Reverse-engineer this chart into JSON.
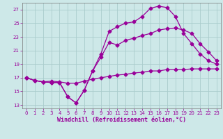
{
  "xlabel": "Windchill (Refroidissement éolien,°C)",
  "background_color": "#cde8e8",
  "grid_color": "#aacccc",
  "line_color": "#990099",
  "xlim": [
    -0.5,
    23.5
  ],
  "ylim": [
    12.5,
    28.0
  ],
  "xticks": [
    0,
    1,
    2,
    3,
    4,
    5,
    6,
    7,
    8,
    9,
    10,
    11,
    12,
    13,
    14,
    15,
    16,
    17,
    18,
    19,
    20,
    21,
    22,
    23
  ],
  "yticks": [
    13,
    15,
    17,
    19,
    21,
    23,
    25,
    27
  ],
  "line1_x": [
    0,
    1,
    2,
    3,
    4,
    5,
    6,
    7,
    8,
    9,
    10,
    11,
    12,
    13,
    14,
    15,
    16,
    17,
    18,
    19,
    20,
    21,
    22,
    23
  ],
  "line1_y": [
    17.0,
    16.6,
    16.4,
    16.3,
    16.3,
    14.2,
    13.3,
    15.2,
    18.0,
    20.0,
    22.2,
    21.8,
    22.5,
    22.8,
    23.2,
    23.5,
    24.0,
    24.2,
    24.3,
    24.0,
    23.5,
    22.0,
    20.8,
    19.5
  ],
  "line2_x": [
    0,
    1,
    2,
    3,
    4,
    5,
    6,
    7,
    8,
    9,
    10,
    11,
    12,
    13,
    14,
    15,
    16,
    17,
    18,
    19,
    20,
    21,
    22,
    23
  ],
  "line2_y": [
    17.0,
    16.6,
    16.4,
    16.3,
    16.3,
    14.2,
    13.3,
    15.2,
    18.0,
    20.5,
    23.8,
    24.5,
    25.0,
    25.2,
    26.0,
    27.2,
    27.5,
    27.3,
    26.0,
    23.5,
    22.0,
    20.5,
    19.5,
    19.0
  ],
  "line3_x": [
    0,
    1,
    2,
    3,
    4,
    5,
    6,
    7,
    8,
    9,
    10,
    11,
    12,
    13,
    14,
    15,
    16,
    17,
    18,
    19,
    20,
    21,
    22,
    23
  ],
  "line3_y": [
    17.0,
    16.6,
    16.4,
    16.5,
    16.4,
    16.2,
    16.2,
    16.5,
    16.8,
    17.0,
    17.2,
    17.4,
    17.5,
    17.7,
    17.8,
    18.0,
    18.0,
    18.2,
    18.2,
    18.2,
    18.3,
    18.3,
    18.3,
    18.3
  ],
  "marker": "D",
  "markersize": 2.5,
  "linewidth": 0.9,
  "tick_fontsize": 5.0,
  "label_fontsize": 6.0
}
